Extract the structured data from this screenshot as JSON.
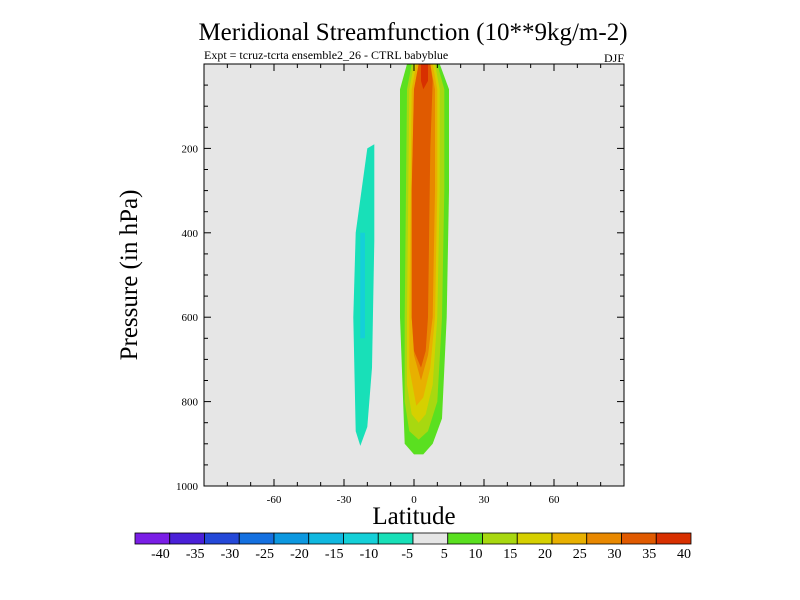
{
  "chart_data": {
    "type": "heatmap",
    "title": "Meridional Streamfunction (10**9kg/m-2)",
    "subtitle": "Expt = tcruz-tcrta  ensemble2_26 - CTRL babyblue",
    "season": "DJF",
    "xlabel": "Latitude",
    "ylabel": "Pressure (in hPa)",
    "xlim": [
      -90,
      90
    ],
    "ylim": [
      1000,
      0
    ],
    "x_ticks": [
      -60,
      -30,
      0,
      30,
      60
    ],
    "x_tick_labels": [
      "-60",
      "-30",
      "0",
      "30",
      "60"
    ],
    "y_ticks": [
      200,
      400,
      600,
      800,
      1000
    ],
    "y_tick_labels": [
      "200",
      "400",
      "600",
      "800",
      "1000"
    ],
    "colorbar": {
      "levels": [
        -40,
        -35,
        -30,
        -25,
        -20,
        -15,
        -10,
        -5,
        5,
        10,
        15,
        20,
        25,
        30,
        35,
        40
      ],
      "labels": [
        "-40",
        "-35",
        "-30",
        "-25",
        "-20",
        "-15",
        "-10",
        "-5",
        "5",
        "10",
        "15",
        "20",
        "25",
        "30",
        "35",
        "40"
      ],
      "colors": [
        "#7a1ee6",
        "#4a20d8",
        "#2448d8",
        "#1470e0",
        "#0c98e0",
        "#10b8e0",
        "#14d0d8",
        "#18e0b8",
        "#e6e6e6",
        "#5ae020",
        "#a8d810",
        "#d6d000",
        "#e8b000",
        "#e88800",
        "#e05a00",
        "#d83000"
      ]
    },
    "background_color": "#e6e6e6",
    "contours": [
      {
        "bin": "5",
        "lat": [
          -55.5,
          -54.5,
          -54,
          -55.5
        ],
        "pres": [
          0,
          0,
          20,
          20
        ]
      },
      {
        "bin": "5",
        "lat": [
          -14,
          -10,
          -10,
          -12,
          -14
        ],
        "pres": [
          0,
          0,
          180,
          190,
          180
        ]
      },
      {
        "bin": "5",
        "lat": [
          -5,
          16,
          22,
          22,
          24,
          28,
          30,
          30,
          26,
          22,
          18,
          14,
          10,
          6,
          2,
          -2,
          -6,
          -8,
          -8,
          -8,
          -6
        ],
        "pres": [
          0,
          0,
          120,
          200,
          300,
          340,
          380,
          410,
          400,
          500,
          700,
          880,
          920,
          950,
          975,
          975,
          960,
          900,
          600,
          200,
          60
        ]
      },
      {
        "bin": "-5",
        "lat": [
          -25,
          -20,
          -17,
          -17,
          -18,
          -20,
          -23,
          -25,
          -26
        ],
        "pres": [
          400,
          200,
          190,
          420,
          720,
          860,
          905,
          870,
          600
        ]
      },
      {
        "bin": "-10",
        "lat": [
          -23,
          -21,
          -21,
          -23
        ],
        "pres": [
          400,
          400,
          650,
          650
        ]
      },
      {
        "bin": "10",
        "lat": [
          -3,
          11,
          15,
          15,
          14,
          12,
          8,
          4,
          0,
          -4,
          -6,
          -6
        ],
        "pres": [
          0,
          0,
          60,
          300,
          600,
          840,
          900,
          925,
          925,
          900,
          600,
          60
        ]
      },
      {
        "bin": "15",
        "lat": [
          -1,
          10,
          13,
          13,
          12,
          10,
          6,
          2,
          -2,
          -4,
          -4,
          -3
        ],
        "pres": [
          0,
          0,
          60,
          300,
          600,
          800,
          870,
          890,
          870,
          800,
          600,
          60
        ]
      },
      {
        "bin": "20",
        "lat": [
          0,
          9,
          11,
          11,
          10,
          8,
          5,
          2,
          -1,
          -3,
          -3,
          -2
        ],
        "pres": [
          0,
          0,
          60,
          300,
          600,
          760,
          830,
          850,
          830,
          760,
          600,
          60
        ]
      },
      {
        "bin": "25",
        "lat": [
          1,
          8,
          10,
          10,
          9,
          7,
          4,
          1,
          -2,
          -2,
          -1
        ],
        "pres": [
          0,
          0,
          60,
          300,
          600,
          720,
          790,
          810,
          720,
          600,
          60
        ]
      },
      {
        "bin": "30",
        "lat": [
          2,
          7,
          9,
          9,
          8,
          6,
          3,
          0,
          -1,
          -1,
          0
        ],
        "pres": [
          0,
          0,
          60,
          300,
          600,
          690,
          750,
          690,
          600,
          300,
          60
        ]
      },
      {
        "bin": "35",
        "lat": [
          2,
          7,
          8,
          7,
          6,
          5,
          3,
          0,
          -1,
          -1,
          0
        ],
        "pres": [
          0,
          0,
          40,
          200,
          600,
          680,
          720,
          680,
          600,
          300,
          60
        ]
      },
      {
        "bin": "40",
        "lat": [
          3,
          6,
          6,
          4,
          3
        ],
        "pres": [
          0,
          0,
          40,
          60,
          40
        ]
      }
    ]
  }
}
